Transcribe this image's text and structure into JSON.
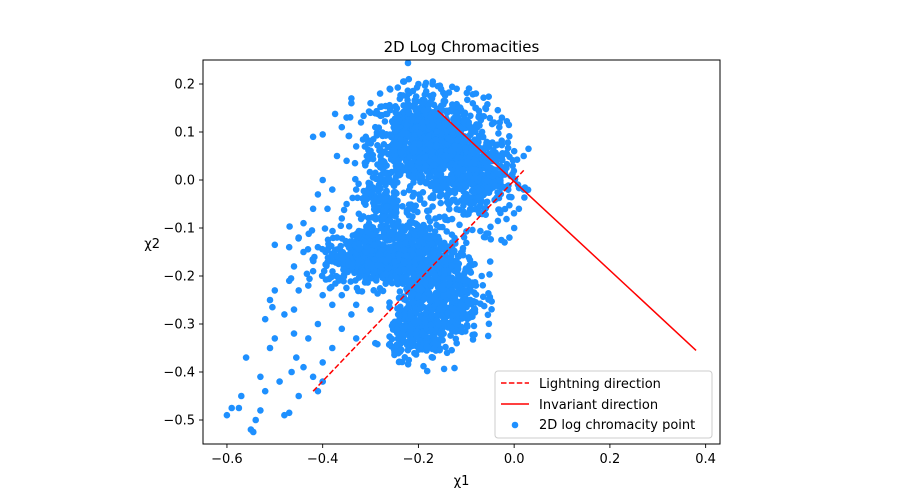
{
  "chart_data": {
    "type": "scatter",
    "title": "2D Log Chromacities",
    "xlabel": "χ1",
    "ylabel": "χ2",
    "xlim": [
      -0.65,
      0.43
    ],
    "ylim": [
      -0.55,
      0.25
    ],
    "xticks": [
      -0.6,
      -0.4,
      -0.2,
      0.0,
      0.2,
      0.4
    ],
    "xtick_labels": [
      "−0.6",
      "−0.4",
      "−0.2",
      "0.0",
      "0.2",
      "0.4"
    ],
    "yticks": [
      -0.5,
      -0.4,
      -0.3,
      -0.2,
      -0.1,
      0.0,
      0.1,
      0.2
    ],
    "ytick_labels": [
      "−0.5",
      "−0.4",
      "−0.3",
      "−0.2",
      "−0.1",
      "0.0",
      "0.1",
      "0.2"
    ],
    "grid": false,
    "legend_position": "lower-right",
    "colors": {
      "points": "#1e90ff",
      "lines": "#ff0000"
    },
    "series": [
      {
        "name": "Lightning direction",
        "kind": "line",
        "style": "dashed",
        "x": [
          -0.42,
          0.02
        ],
        "y": [
          -0.44,
          0.02
        ]
      },
      {
        "name": "Invariant direction",
        "kind": "line",
        "style": "solid",
        "x": [
          -0.16,
          0.38
        ],
        "y": [
          0.145,
          -0.355
        ]
      },
      {
        "name": "2D log chromacity point",
        "kind": "scatter",
        "clusters": [
          {
            "cx": -0.2,
            "cy": 0.08,
            "sx": 0.05,
            "sy": 0.05,
            "n": 700
          },
          {
            "cx": -0.12,
            "cy": 0.05,
            "sx": 0.04,
            "sy": 0.06,
            "n": 450
          },
          {
            "cx": -0.06,
            "cy": 0.0,
            "sx": 0.03,
            "sy": 0.05,
            "n": 250
          },
          {
            "cx": -0.3,
            "cy": -0.16,
            "sx": 0.05,
            "sy": 0.03,
            "n": 450
          },
          {
            "cx": -0.2,
            "cy": -0.16,
            "sx": 0.04,
            "sy": 0.04,
            "n": 350
          },
          {
            "cx": -0.15,
            "cy": -0.24,
            "sx": 0.04,
            "sy": 0.05,
            "n": 450
          },
          {
            "cx": -0.2,
            "cy": -0.32,
            "sx": 0.03,
            "sy": 0.025,
            "n": 250
          },
          {
            "cx": -0.28,
            "cy": -0.05,
            "sx": 0.03,
            "sy": 0.04,
            "n": 150
          }
        ],
        "outliers": [
          {
            "x": -0.6,
            "y": -0.49
          },
          {
            "x": -0.59,
            "y": -0.475
          },
          {
            "x": -0.575,
            "y": -0.475
          },
          {
            "x": -0.57,
            "y": -0.45
          },
          {
            "x": -0.55,
            "y": -0.52
          },
          {
            "x": -0.545,
            "y": -0.525
          },
          {
            "x": -0.54,
            "y": -0.5
          },
          {
            "x": -0.53,
            "y": -0.48
          },
          {
            "x": -0.53,
            "y": -0.41
          },
          {
            "x": -0.56,
            "y": -0.37
          },
          {
            "x": -0.52,
            "y": -0.44
          },
          {
            "x": -0.51,
            "y": -0.35
          },
          {
            "x": -0.5,
            "y": -0.33
          },
          {
            "x": -0.49,
            "y": -0.42
          },
          {
            "x": -0.48,
            "y": -0.49
          },
          {
            "x": -0.47,
            "y": -0.485
          },
          {
            "x": -0.465,
            "y": -0.4
          },
          {
            "x": -0.46,
            "y": -0.32
          },
          {
            "x": -0.455,
            "y": -0.37
          },
          {
            "x": -0.45,
            "y": -0.45
          },
          {
            "x": -0.44,
            "y": -0.39
          },
          {
            "x": -0.43,
            "y": -0.33
          },
          {
            "x": -0.42,
            "y": -0.41
          },
          {
            "x": -0.41,
            "y": -0.3
          },
          {
            "x": -0.4,
            "y": -0.38
          },
          {
            "x": -0.52,
            "y": -0.29
          },
          {
            "x": -0.51,
            "y": -0.25
          },
          {
            "x": -0.5,
            "y": -0.23
          },
          {
            "x": -0.505,
            "y": -0.265
          },
          {
            "x": -0.48,
            "y": -0.28
          },
          {
            "x": -0.47,
            "y": -0.21
          },
          {
            "x": -0.46,
            "y": -0.27
          },
          {
            "x": -0.5,
            "y": -0.135
          },
          {
            "x": -0.47,
            "y": -0.14
          },
          {
            "x": -0.45,
            "y": -0.12
          },
          {
            "x": -0.44,
            "y": -0.09
          },
          {
            "x": -0.42,
            "y": -0.06
          },
          {
            "x": -0.41,
            "y": -0.03
          },
          {
            "x": -0.4,
            "y": 0.0
          },
          {
            "x": -0.38,
            "y": -0.02
          },
          {
            "x": -0.42,
            "y": 0.09
          },
          {
            "x": -0.4,
            "y": 0.095
          },
          {
            "x": -0.37,
            "y": 0.05
          },
          {
            "x": -0.36,
            "y": 0.11
          },
          {
            "x": -0.35,
            "y": 0.13
          },
          {
            "x": -0.34,
            "y": 0.16
          },
          {
            "x": -0.34,
            "y": 0.17
          },
          {
            "x": -0.32,
            "y": 0.12
          },
          {
            "x": -0.3,
            "y": 0.16
          },
          {
            "x": -0.28,
            "y": 0.18
          },
          {
            "x": -0.26,
            "y": 0.19
          },
          {
            "x": -0.23,
            "y": 0.205
          },
          {
            "x": -0.22,
            "y": 0.21
          },
          {
            "x": -0.2,
            "y": 0.2
          },
          {
            "x": -0.17,
            "y": 0.205
          },
          {
            "x": -0.12,
            "y": 0.19
          },
          {
            "x": -0.08,
            "y": 0.18
          },
          {
            "x": -0.06,
            "y": 0.15
          },
          {
            "x": -0.03,
            "y": 0.12
          },
          {
            "x": 0.0,
            "y": 0.06
          },
          {
            "x": 0.02,
            "y": 0.05
          },
          {
            "x": 0.03,
            "y": 0.065
          },
          {
            "x": 0.02,
            "y": -0.02
          },
          {
            "x": 0.01,
            "y": -0.06
          },
          {
            "x": 0.0,
            "y": -0.1
          },
          {
            "x": -0.01,
            "y": -0.12
          },
          {
            "x": -0.02,
            "y": -0.13
          },
          {
            "x": -0.05,
            "y": -0.17
          },
          {
            "x": -0.08,
            "y": -0.22
          },
          {
            "x": -0.1,
            "y": -0.28
          },
          {
            "x": -0.12,
            "y": -0.34
          },
          {
            "x": -0.14,
            "y": -0.36
          },
          {
            "x": -0.17,
            "y": -0.37
          },
          {
            "x": -0.22,
            "y": -0.375
          },
          {
            "x": -0.25,
            "y": -0.36
          },
          {
            "x": -0.29,
            "y": -0.34
          },
          {
            "x": -0.33,
            "y": -0.33
          },
          {
            "x": -0.36,
            "y": -0.31
          },
          {
            "x": -0.38,
            "y": -0.35
          },
          {
            "x": -0.4,
            "y": -0.42
          },
          {
            "x": -0.41,
            "y": -0.44
          },
          {
            "x": -0.3,
            "y": -0.27
          },
          {
            "x": -0.33,
            "y": -0.26
          },
          {
            "x": -0.34,
            "y": -0.28
          },
          {
            "x": -0.36,
            "y": -0.24
          },
          {
            "x": -0.4,
            "y": -0.24
          },
          {
            "x": -0.38,
            "y": -0.26
          },
          {
            "x": -0.39,
            "y": -0.06
          },
          {
            "x": -0.37,
            "y": -0.12
          },
          {
            "x": -0.36,
            "y": -0.08
          },
          {
            "x": -0.35,
            "y": -0.05
          },
          {
            "x": -0.33,
            "y": -0.02
          },
          {
            "x": -0.35,
            "y": 0.04
          },
          {
            "x": -0.33,
            "y": 0.07
          },
          {
            "x": -0.31,
            "y": 0.09
          },
          {
            "x": -0.3,
            "y": 0.14
          },
          {
            "x": -0.29,
            "y": 0.11
          },
          {
            "x": -0.26,
            "y": 0.15
          },
          {
            "x": -0.44,
            "y": -0.15
          },
          {
            "x": -0.42,
            "y": -0.19
          },
          {
            "x": -0.45,
            "y": -0.23
          },
          {
            "x": -0.43,
            "y": -0.22
          },
          {
            "x": -0.41,
            "y": -0.14
          },
          {
            "x": -0.46,
            "y": -0.18
          }
        ]
      }
    ]
  }
}
